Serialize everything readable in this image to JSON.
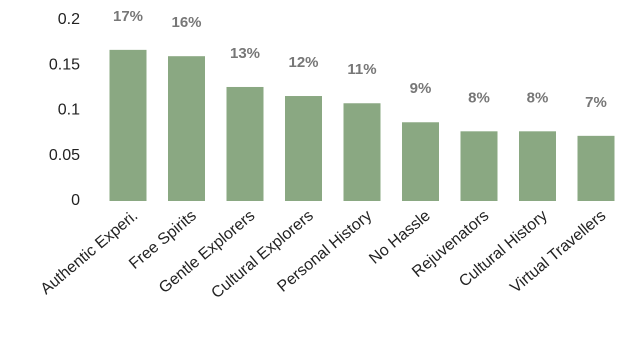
{
  "chart_data": {
    "type": "bar",
    "categories": [
      "Authentic Experi.",
      "Free Spirits",
      "Gentle Explorers",
      "Cultural Explorers",
      "Personal History",
      "No Hassle",
      "Rejuvenators",
      "Cultural History",
      "Virtual Travellers"
    ],
    "values": [
      0.167,
      0.16,
      0.126,
      0.116,
      0.108,
      0.087,
      0.077,
      0.077,
      0.072
    ],
    "value_labels": [
      "17%",
      "16%",
      "13%",
      "12%",
      "11%",
      "9%",
      "8%",
      "8%",
      "7%"
    ],
    "color": "#8aa882",
    "ylim": [
      0,
      0.2
    ],
    "yticks": [
      0,
      0.05,
      0.1,
      0.15,
      0.2
    ],
    "grid": false
  }
}
